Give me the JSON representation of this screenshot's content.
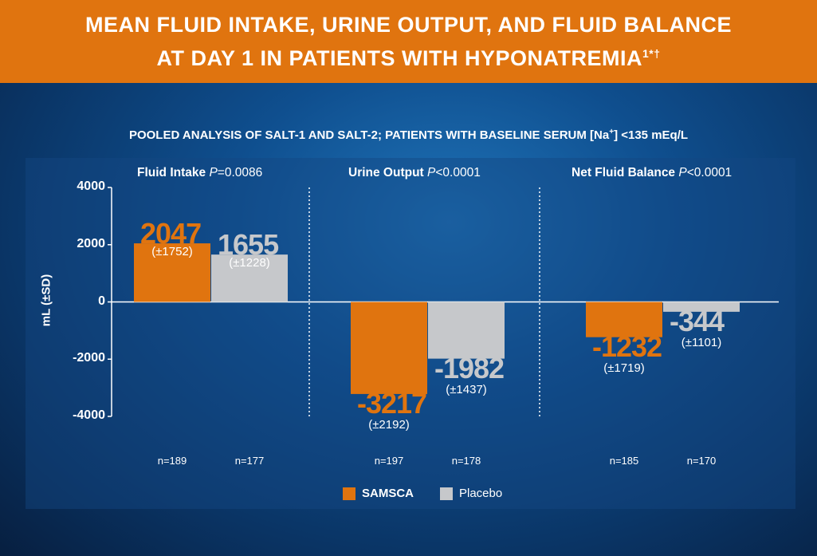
{
  "header": {
    "title_line1": "MEAN FLUID INTAKE, URINE OUTPUT, AND FLUID BALANCE",
    "title_line2": "AT DAY 1 IN PATIENTS WITH HYPONATREMIA",
    "title_sup": "1*†"
  },
  "subtitle": {
    "prefix": "POOLED ANALYSIS OF SALT-1 AND SALT-2; PATIENTS WITH BASELINE SERUM [Na",
    "sup": "+",
    "suffix": "] <135 mEq/L"
  },
  "chart_data": {
    "type": "bar",
    "ylabel": "mL (±SD)",
    "ylim": [
      -4000,
      4000
    ],
    "yticks": [
      "4000",
      "2000",
      "0",
      "-2000",
      "-4000"
    ],
    "grid": false,
    "colors": {
      "samsca": "#e0740f",
      "placebo": "#c6c8cb",
      "samsca_text": "#e0740f",
      "placebo_text": "#c6c8cb"
    },
    "legend": {
      "position": "bottom",
      "samsca": "SAMSCA",
      "placebo": "Placebo"
    },
    "groups": [
      {
        "name": "Fluid Intake",
        "p_label": "P",
        "p_value": "=0.0086",
        "samsca": {
          "value": 2047,
          "label": "2047",
          "sd": "(±1752)",
          "n": "n=189"
        },
        "placebo": {
          "value": 1655,
          "label": "1655",
          "sd": "(±1228)",
          "n": "n=177"
        }
      },
      {
        "name": "Urine Output",
        "p_label": "P",
        "p_value": "<0.0001",
        "samsca": {
          "value": -3217,
          "label": "-3217",
          "sd": "(±2192)",
          "n": "n=197"
        },
        "placebo": {
          "value": -1982,
          "label": "-1982",
          "sd": "(±1437)",
          "n": "n=178"
        }
      },
      {
        "name": "Net Fluid Balance",
        "p_label": "P",
        "p_value": "<0.0001",
        "samsca": {
          "value": -1232,
          "label": "-1232",
          "sd": "(±1719)",
          "n": "n=185"
        },
        "placebo": {
          "value": -344,
          "label": "-344",
          "sd": "(±1101)",
          "n": "n=170"
        }
      }
    ]
  }
}
